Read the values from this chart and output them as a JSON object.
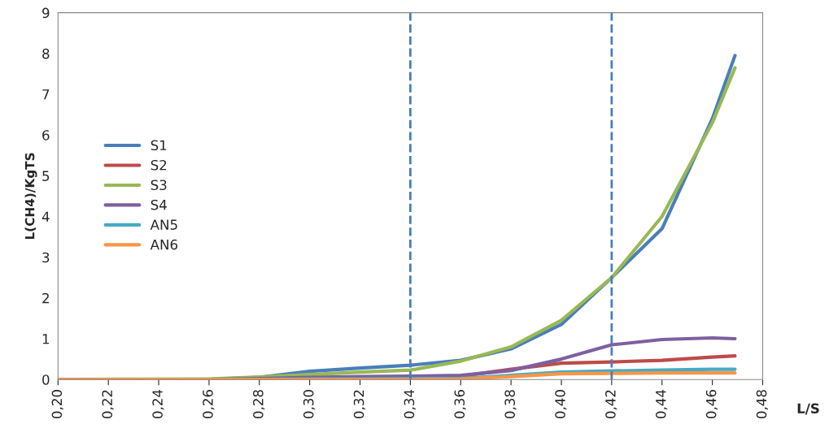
{
  "chart_data": {
    "type": "line",
    "xlabel": "L/S",
    "ylabel": "L(CH4)/KgTS",
    "x": [
      0.2,
      0.26,
      0.28,
      0.3,
      0.32,
      0.34,
      0.36,
      0.38,
      0.4,
      0.42,
      0.44,
      0.46,
      0.469
    ],
    "series": [
      {
        "name": "S1",
        "color": "#4a7ebb",
        "values": [
          0,
          0,
          0.05,
          0.2,
          0.28,
          0.35,
          0.47,
          0.75,
          1.35,
          2.5,
          3.7,
          6.4,
          7.95
        ]
      },
      {
        "name": "S2",
        "color": "#be4b48",
        "values": [
          null,
          null,
          null,
          null,
          null,
          0.06,
          0.08,
          0.25,
          0.4,
          0.43,
          0.47,
          0.55,
          0.58
        ]
      },
      {
        "name": "S3",
        "color": "#98b954",
        "values": [
          0,
          0.01,
          0.06,
          0.12,
          0.18,
          0.23,
          0.45,
          0.8,
          1.45,
          2.5,
          4.0,
          6.3,
          7.65
        ]
      },
      {
        "name": "S4",
        "color": "#7d60a0",
        "values": [
          0,
          0,
          0.02,
          0.05,
          0.07,
          0.08,
          0.1,
          0.22,
          0.5,
          0.85,
          0.98,
          1.02,
          1.0
        ]
      },
      {
        "name": "AN5",
        "color": "#46aac5",
        "values": [
          null,
          null,
          0,
          0.01,
          0.01,
          0.02,
          0.02,
          0.1,
          0.18,
          0.21,
          0.23,
          0.25,
          0.25
        ]
      },
      {
        "name": "AN6",
        "color": "#f79646",
        "values": [
          0,
          0,
          0,
          0,
          0,
          0,
          0.01,
          0.07,
          0.14,
          0.15,
          0.16,
          0.16,
          0.16
        ]
      }
    ],
    "xlim": [
      0.2,
      0.48
    ],
    "xticks": [
      {
        "value": 0.2,
        "label": "0,20"
      },
      {
        "value": 0.22,
        "label": "0,22"
      },
      {
        "value": 0.24,
        "label": "0,24"
      },
      {
        "value": 0.26,
        "label": "0,26"
      },
      {
        "value": 0.28,
        "label": "0,28"
      },
      {
        "value": 0.3,
        "label": "0,30"
      },
      {
        "value": 0.32,
        "label": "0,32"
      },
      {
        "value": 0.34,
        "label": "0,34"
      },
      {
        "value": 0.36,
        "label": "0,36"
      },
      {
        "value": 0.38,
        "label": "0,38"
      },
      {
        "value": 0.4,
        "label": "0,40"
      },
      {
        "value": 0.42,
        "label": "0,42"
      },
      {
        "value": 0.44,
        "label": "0,44"
      },
      {
        "value": 0.46,
        "label": "0,46"
      },
      {
        "value": 0.48,
        "label": "0,48"
      }
    ],
    "ylim": [
      0,
      9
    ],
    "yticks": [
      0,
      1,
      2,
      3,
      4,
      5,
      6,
      7,
      8,
      9
    ],
    "ref_lines": [
      {
        "axis": "x",
        "value": 0.34,
        "color": "#4a7ebb",
        "line_style": "dashed"
      },
      {
        "axis": "x",
        "value": 0.42,
        "color": "#4a7ebb",
        "line_style": "dashed"
      }
    ],
    "grid": false,
    "legend": "left",
    "marker": "none",
    "line_style": "solid"
  }
}
